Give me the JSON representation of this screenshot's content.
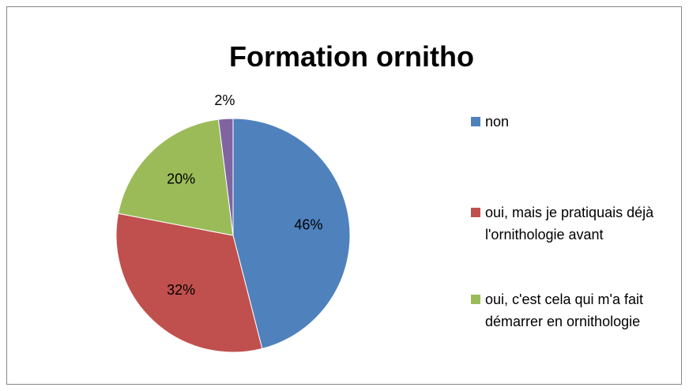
{
  "chart_data": {
    "type": "pie",
    "title": "Formation ornitho",
    "categories": [
      "non",
      "oui, mais je pratiquais déjà l'ornithologie avant",
      "oui, c'est cela qui m'a fait démarrer en ornithologie",
      null
    ],
    "values": [
      46,
      32,
      20,
      2
    ],
    "value_labels": [
      "46%",
      "32%",
      "20%",
      "2%"
    ],
    "colors": [
      "#4f81bd",
      "#c0504d",
      "#9bbb59",
      "#8064a2"
    ],
    "legend": "right"
  }
}
